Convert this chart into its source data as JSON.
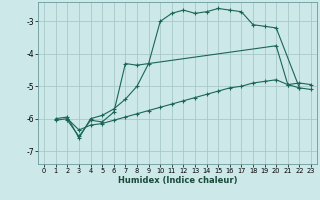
{
  "background_color": "#cde8e8",
  "grid_color": "#a8c8c8",
  "line_color": "#1a6655",
  "xlabel": "Humidex (Indice chaleur)",
  "ylim": [
    -7.4,
    -2.4
  ],
  "xlim": [
    -0.5,
    23.5
  ],
  "yticks": [
    -7,
    -6,
    -5,
    -4,
    -3
  ],
  "xticks": [
    0,
    1,
    2,
    3,
    4,
    5,
    6,
    7,
    8,
    9,
    10,
    11,
    12,
    13,
    14,
    15,
    16,
    17,
    18,
    19,
    20,
    21,
    22,
    23
  ],
  "curve1_x": [
    1,
    2,
    3,
    4,
    5,
    6,
    7,
    8,
    9,
    10,
    11,
    12,
    13,
    14,
    15,
    16,
    17,
    18,
    19,
    20,
    22
  ],
  "curve1_y": [
    -6.0,
    -5.95,
    -6.6,
    -6.0,
    -5.9,
    -5.7,
    -5.4,
    -5.0,
    -4.3,
    -3.0,
    -2.75,
    -2.65,
    -2.75,
    -2.7,
    -2.6,
    -2.65,
    -2.7,
    -3.1,
    -3.15,
    -3.2,
    -5.05
  ],
  "curve2_x": [
    2,
    3,
    4,
    5,
    6,
    7,
    8,
    20,
    21,
    22,
    23
  ],
  "curve2_y": [
    -6.05,
    -6.55,
    -6.05,
    -6.1,
    -5.8,
    -4.3,
    -4.35,
    -3.75,
    -4.95,
    -5.05,
    -5.1
  ],
  "curve3_x": [
    1,
    2,
    3,
    4,
    5,
    6,
    7,
    8,
    9,
    10,
    11,
    12,
    13,
    14,
    15,
    16,
    17,
    18,
    19,
    20,
    21,
    22,
    23
  ],
  "curve3_y": [
    -6.05,
    -6.0,
    -6.35,
    -6.2,
    -6.15,
    -6.05,
    -5.95,
    -5.85,
    -5.75,
    -5.65,
    -5.55,
    -5.45,
    -5.35,
    -5.25,
    -5.15,
    -5.05,
    -5.0,
    -4.9,
    -4.85,
    -4.8,
    -4.95,
    -4.9,
    -4.95
  ]
}
